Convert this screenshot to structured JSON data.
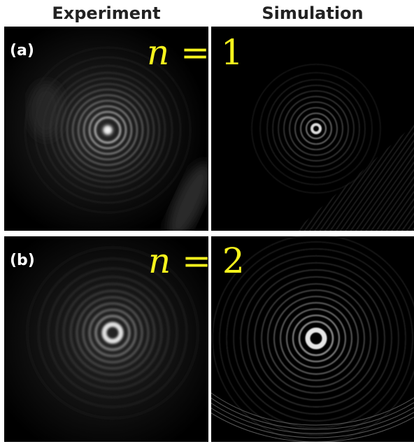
{
  "columns": {
    "experiment": "Experiment",
    "simulation": "Simulation"
  },
  "rows": [
    {
      "label": "(a)",
      "equation_var": "n",
      "equation_rest": " = 1"
    },
    {
      "label": "(b)",
      "equation_var": "n",
      "equation_rest": " = 2"
    }
  ],
  "colors": {
    "background": "#ffffff",
    "panel": "#000000",
    "equation": "#f6f31c",
    "label": "#ffffff",
    "title": "#222222"
  }
}
